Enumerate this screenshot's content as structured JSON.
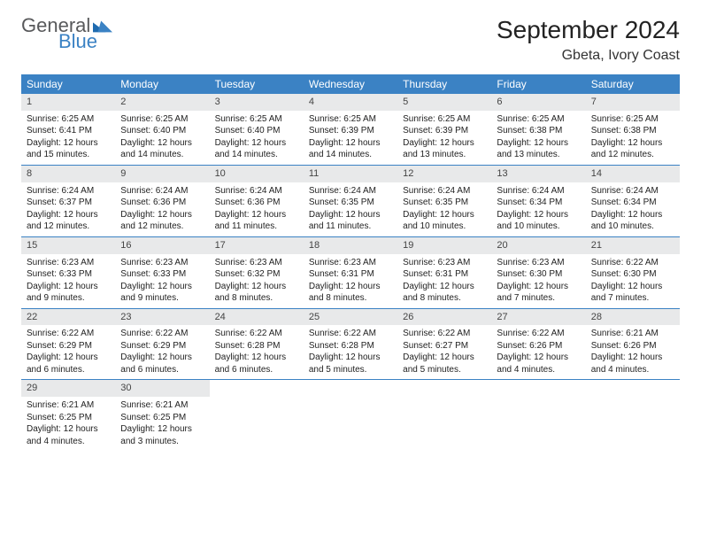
{
  "logo": {
    "word1": "General",
    "word2": "Blue",
    "tri_color": "#1f6bb0"
  },
  "title": "September 2024",
  "location": "Gbeta, Ivory Coast",
  "colors": {
    "header_bg": "#3b82c4",
    "daynum_bg": "#e8e9ea",
    "text": "#222222",
    "logo_gray": "#58595b",
    "logo_blue": "#3b82c4"
  },
  "weekdays": [
    "Sunday",
    "Monday",
    "Tuesday",
    "Wednesday",
    "Thursday",
    "Friday",
    "Saturday"
  ],
  "weeks": [
    [
      {
        "n": "1",
        "sr": "Sunrise: 6:25 AM",
        "ss": "Sunset: 6:41 PM",
        "d1": "Daylight: 12 hours",
        "d2": "and 15 minutes."
      },
      {
        "n": "2",
        "sr": "Sunrise: 6:25 AM",
        "ss": "Sunset: 6:40 PM",
        "d1": "Daylight: 12 hours",
        "d2": "and 14 minutes."
      },
      {
        "n": "3",
        "sr": "Sunrise: 6:25 AM",
        "ss": "Sunset: 6:40 PM",
        "d1": "Daylight: 12 hours",
        "d2": "and 14 minutes."
      },
      {
        "n": "4",
        "sr": "Sunrise: 6:25 AM",
        "ss": "Sunset: 6:39 PM",
        "d1": "Daylight: 12 hours",
        "d2": "and 14 minutes."
      },
      {
        "n": "5",
        "sr": "Sunrise: 6:25 AM",
        "ss": "Sunset: 6:39 PM",
        "d1": "Daylight: 12 hours",
        "d2": "and 13 minutes."
      },
      {
        "n": "6",
        "sr": "Sunrise: 6:25 AM",
        "ss": "Sunset: 6:38 PM",
        "d1": "Daylight: 12 hours",
        "d2": "and 13 minutes."
      },
      {
        "n": "7",
        "sr": "Sunrise: 6:25 AM",
        "ss": "Sunset: 6:38 PM",
        "d1": "Daylight: 12 hours",
        "d2": "and 12 minutes."
      }
    ],
    [
      {
        "n": "8",
        "sr": "Sunrise: 6:24 AM",
        "ss": "Sunset: 6:37 PM",
        "d1": "Daylight: 12 hours",
        "d2": "and 12 minutes."
      },
      {
        "n": "9",
        "sr": "Sunrise: 6:24 AM",
        "ss": "Sunset: 6:36 PM",
        "d1": "Daylight: 12 hours",
        "d2": "and 12 minutes."
      },
      {
        "n": "10",
        "sr": "Sunrise: 6:24 AM",
        "ss": "Sunset: 6:36 PM",
        "d1": "Daylight: 12 hours",
        "d2": "and 11 minutes."
      },
      {
        "n": "11",
        "sr": "Sunrise: 6:24 AM",
        "ss": "Sunset: 6:35 PM",
        "d1": "Daylight: 12 hours",
        "d2": "and 11 minutes."
      },
      {
        "n": "12",
        "sr": "Sunrise: 6:24 AM",
        "ss": "Sunset: 6:35 PM",
        "d1": "Daylight: 12 hours",
        "d2": "and 10 minutes."
      },
      {
        "n": "13",
        "sr": "Sunrise: 6:24 AM",
        "ss": "Sunset: 6:34 PM",
        "d1": "Daylight: 12 hours",
        "d2": "and 10 minutes."
      },
      {
        "n": "14",
        "sr": "Sunrise: 6:24 AM",
        "ss": "Sunset: 6:34 PM",
        "d1": "Daylight: 12 hours",
        "d2": "and 10 minutes."
      }
    ],
    [
      {
        "n": "15",
        "sr": "Sunrise: 6:23 AM",
        "ss": "Sunset: 6:33 PM",
        "d1": "Daylight: 12 hours",
        "d2": "and 9 minutes."
      },
      {
        "n": "16",
        "sr": "Sunrise: 6:23 AM",
        "ss": "Sunset: 6:33 PM",
        "d1": "Daylight: 12 hours",
        "d2": "and 9 minutes."
      },
      {
        "n": "17",
        "sr": "Sunrise: 6:23 AM",
        "ss": "Sunset: 6:32 PM",
        "d1": "Daylight: 12 hours",
        "d2": "and 8 minutes."
      },
      {
        "n": "18",
        "sr": "Sunrise: 6:23 AM",
        "ss": "Sunset: 6:31 PM",
        "d1": "Daylight: 12 hours",
        "d2": "and 8 minutes."
      },
      {
        "n": "19",
        "sr": "Sunrise: 6:23 AM",
        "ss": "Sunset: 6:31 PM",
        "d1": "Daylight: 12 hours",
        "d2": "and 8 minutes."
      },
      {
        "n": "20",
        "sr": "Sunrise: 6:23 AM",
        "ss": "Sunset: 6:30 PM",
        "d1": "Daylight: 12 hours",
        "d2": "and 7 minutes."
      },
      {
        "n": "21",
        "sr": "Sunrise: 6:22 AM",
        "ss": "Sunset: 6:30 PM",
        "d1": "Daylight: 12 hours",
        "d2": "and 7 minutes."
      }
    ],
    [
      {
        "n": "22",
        "sr": "Sunrise: 6:22 AM",
        "ss": "Sunset: 6:29 PM",
        "d1": "Daylight: 12 hours",
        "d2": "and 6 minutes."
      },
      {
        "n": "23",
        "sr": "Sunrise: 6:22 AM",
        "ss": "Sunset: 6:29 PM",
        "d1": "Daylight: 12 hours",
        "d2": "and 6 minutes."
      },
      {
        "n": "24",
        "sr": "Sunrise: 6:22 AM",
        "ss": "Sunset: 6:28 PM",
        "d1": "Daylight: 12 hours",
        "d2": "and 6 minutes."
      },
      {
        "n": "25",
        "sr": "Sunrise: 6:22 AM",
        "ss": "Sunset: 6:28 PM",
        "d1": "Daylight: 12 hours",
        "d2": "and 5 minutes."
      },
      {
        "n": "26",
        "sr": "Sunrise: 6:22 AM",
        "ss": "Sunset: 6:27 PM",
        "d1": "Daylight: 12 hours",
        "d2": "and 5 minutes."
      },
      {
        "n": "27",
        "sr": "Sunrise: 6:22 AM",
        "ss": "Sunset: 6:26 PM",
        "d1": "Daylight: 12 hours",
        "d2": "and 4 minutes."
      },
      {
        "n": "28",
        "sr": "Sunrise: 6:21 AM",
        "ss": "Sunset: 6:26 PM",
        "d1": "Daylight: 12 hours",
        "d2": "and 4 minutes."
      }
    ],
    [
      {
        "n": "29",
        "sr": "Sunrise: 6:21 AM",
        "ss": "Sunset: 6:25 PM",
        "d1": "Daylight: 12 hours",
        "d2": "and 4 minutes."
      },
      {
        "n": "30",
        "sr": "Sunrise: 6:21 AM",
        "ss": "Sunset: 6:25 PM",
        "d1": "Daylight: 12 hours",
        "d2": "and 3 minutes."
      },
      null,
      null,
      null,
      null,
      null
    ]
  ]
}
